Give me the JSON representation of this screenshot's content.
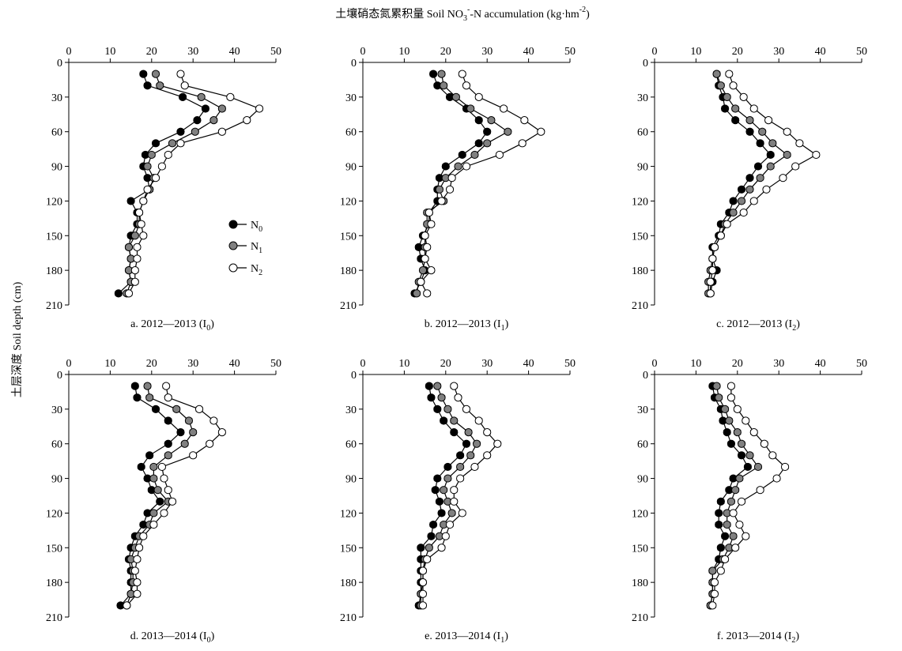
{
  "figure": {
    "top_title": "土壤硝态氮累积量 Soil NO3--N accumulation (kg·hm-2)",
    "top_title_parts": {
      "prefix": "土壤硝态氮累积量 Soil NO",
      "sub": "3",
      "sup": "-",
      "mid": "-N accumulation (kg·hm",
      "sup2": "-2",
      "suffix": ")"
    },
    "y_title": "土层深度 Soil depth (cm)"
  },
  "legend": [
    {
      "label": "N0",
      "base": "N",
      "sub": "0",
      "fill": "#000000"
    },
    {
      "label": "N1",
      "base": "N",
      "sub": "1",
      "fill": "#808080"
    },
    {
      "label": "N2",
      "base": "N",
      "sub": "2",
      "fill": "#ffffff"
    }
  ],
  "chart_data": [
    {
      "type": "line",
      "caption": "a. 2012—2013 (I0)",
      "caption_base": "a. 2012—2013 (I",
      "caption_sub": "0",
      "caption_end": ")",
      "xlim": [
        0,
        50
      ],
      "xticks": [
        0,
        10,
        20,
        30,
        40,
        50
      ],
      "ylim": [
        0,
        210
      ],
      "yticks": [
        0,
        30,
        60,
        90,
        120,
        150,
        180,
        210
      ],
      "y_inverted": true,
      "depth": [
        10,
        20,
        30,
        40,
        50,
        60,
        70,
        80,
        90,
        100,
        110,
        120,
        130,
        140,
        150,
        160,
        170,
        180,
        190,
        200
      ],
      "series": [
        {
          "name": "N0",
          "values": [
            18,
            19,
            27.5,
            33,
            31,
            27,
            21,
            18.5,
            18,
            19,
            19.5,
            15,
            16.5,
            16.5,
            15,
            14.5,
            15,
            14.5,
            15,
            12
          ]
        },
        {
          "name": "N1",
          "values": [
            21,
            22,
            32,
            37,
            35,
            30.5,
            25,
            20,
            19,
            20.5,
            19.5,
            18,
            17,
            17,
            16,
            14.5,
            15,
            14.5,
            15,
            14
          ]
        },
        {
          "name": "N2",
          "values": [
            27,
            28,
            39,
            46,
            43,
            37,
            27,
            24,
            22.5,
            21,
            19,
            18,
            17,
            17.5,
            18,
            16.5,
            16.5,
            16,
            16,
            14.5
          ]
        }
      ]
    },
    {
      "type": "line",
      "caption": "b. 2012—2013 (I1)",
      "caption_base": "b. 2012—2013 (I",
      "caption_sub": "1",
      "caption_end": ")",
      "xlim": [
        0,
        50
      ],
      "xticks": [
        0,
        10,
        20,
        30,
        40,
        50
      ],
      "ylim": [
        0,
        210
      ],
      "yticks": [
        0,
        30,
        60,
        90,
        120,
        150,
        180,
        210
      ],
      "y_inverted": true,
      "depth": [
        10,
        20,
        30,
        40,
        50,
        60,
        70,
        80,
        90,
        100,
        110,
        120,
        130,
        140,
        150,
        160,
        170,
        180,
        190,
        200
      ],
      "series": [
        {
          "name": "N0",
          "values": [
            17,
            18,
            21,
            25,
            28,
            30,
            28,
            24,
            20,
            18.5,
            18,
            18,
            16,
            16,
            14.5,
            13.5,
            14,
            15,
            14,
            12.5
          ]
        },
        {
          "name": "N1",
          "values": [
            19,
            19.5,
            22.5,
            26,
            31,
            35,
            30,
            27,
            23,
            20,
            18.5,
            19.5,
            15.5,
            15.5,
            15,
            15,
            15,
            14.5,
            13.5,
            13
          ]
        },
        {
          "name": "N2",
          "values": [
            24,
            25,
            28,
            34,
            39,
            43,
            38.5,
            33,
            25,
            21.5,
            21,
            19,
            16,
            16.5,
            15,
            15.5,
            15,
            16.5,
            14,
            15.5
          ]
        }
      ]
    },
    {
      "type": "line",
      "caption": "c. 2012—2013 (I2)",
      "caption_base": "c. 2012—2013 (I",
      "caption_sub": "2",
      "caption_end": ")",
      "xlim": [
        0,
        50
      ],
      "xticks": [
        0,
        10,
        20,
        30,
        40,
        50
      ],
      "ylim": [
        0,
        210
      ],
      "yticks": [
        0,
        30,
        60,
        90,
        120,
        150,
        180,
        210
      ],
      "y_inverted": true,
      "depth": [
        10,
        20,
        30,
        40,
        50,
        60,
        70,
        80,
        90,
        100,
        110,
        120,
        130,
        140,
        150,
        160,
        170,
        180,
        190,
        200
      ],
      "series": [
        {
          "name": "N0",
          "values": [
            15,
            15.5,
            16.5,
            17,
            19.5,
            23,
            25.5,
            28,
            25,
            23,
            21,
            19,
            18,
            16,
            15.5,
            14,
            14,
            15,
            14,
            13.5
          ]
        },
        {
          "name": "N1",
          "values": [
            15,
            16,
            17.5,
            19.5,
            23,
            26,
            28.5,
            32,
            28,
            25.5,
            23,
            21,
            19,
            17,
            16,
            14.5,
            14,
            13.5,
            13,
            13
          ]
        },
        {
          "name": "N2",
          "values": [
            18,
            19,
            21.5,
            24,
            27.5,
            32,
            35,
            39,
            34,
            31,
            27,
            24,
            21.5,
            17.5,
            16,
            14.5,
            14,
            14,
            13.5,
            13.5
          ]
        }
      ]
    },
    {
      "type": "line",
      "caption": "d. 2013—2014 (I0)",
      "caption_base": "d. 2013—2014 (I",
      "caption_sub": "0",
      "caption_end": ")",
      "xlim": [
        0,
        50
      ],
      "xticks": [
        0,
        10,
        20,
        30,
        40,
        50
      ],
      "ylim": [
        0,
        210
      ],
      "yticks": [
        0,
        30,
        60,
        90,
        120,
        150,
        180,
        210
      ],
      "y_inverted": true,
      "depth": [
        10,
        20,
        30,
        40,
        50,
        60,
        70,
        80,
        90,
        100,
        110,
        120,
        130,
        140,
        150,
        160,
        170,
        180,
        190,
        200
      ],
      "series": [
        {
          "name": "N0",
          "values": [
            16,
            16.5,
            21,
            24,
            27,
            24,
            19.5,
            17.5,
            19,
            20,
            22,
            19,
            18,
            16,
            15,
            14.5,
            15,
            15,
            15,
            12.5
          ]
        },
        {
          "name": "N1",
          "values": [
            19,
            19.5,
            26,
            29,
            30,
            28,
            24,
            20.5,
            20.5,
            21.5,
            24,
            20.5,
            19.5,
            17,
            16,
            15,
            15.5,
            15.5,
            15,
            14
          ]
        },
        {
          "name": "N2",
          "values": [
            23.5,
            24,
            31.5,
            35,
            37,
            34,
            30,
            22.5,
            23,
            24,
            25,
            23,
            20.5,
            18,
            17,
            16.5,
            16,
            16.5,
            16.5,
            14
          ]
        }
      ]
    },
    {
      "type": "line",
      "caption": "e. 2013—2014 (I1)",
      "caption_base": "e. 2013—2014 (I",
      "caption_sub": "1",
      "caption_end": ")",
      "xlim": [
        0,
        50
      ],
      "xticks": [
        0,
        10,
        20,
        30,
        40,
        50
      ],
      "ylim": [
        0,
        210
      ],
      "yticks": [
        0,
        30,
        60,
        90,
        120,
        150,
        180,
        210
      ],
      "y_inverted": true,
      "depth": [
        10,
        20,
        30,
        40,
        50,
        60,
        70,
        80,
        90,
        100,
        110,
        120,
        130,
        140,
        150,
        160,
        170,
        180,
        190,
        200
      ],
      "series": [
        {
          "name": "N0",
          "values": [
            16,
            16.5,
            18,
            19.5,
            22,
            25,
            23.5,
            20.5,
            18,
            17.5,
            18.5,
            19,
            17,
            16.5,
            14,
            14,
            14,
            14,
            14,
            13.5
          ]
        },
        {
          "name": "N1",
          "values": [
            18,
            19,
            20.5,
            22,
            25.5,
            27.5,
            26,
            23.5,
            20.5,
            19.5,
            20.5,
            21.5,
            19.5,
            18.5,
            16,
            15,
            14.5,
            14.5,
            14,
            14
          ]
        },
        {
          "name": "N2",
          "values": [
            22,
            23,
            25,
            28,
            30,
            32.5,
            30,
            27,
            23.5,
            22,
            22,
            24,
            21,
            20,
            19,
            15.5,
            14.5,
            14.5,
            14.5,
            14.5
          ]
        }
      ]
    },
    {
      "type": "line",
      "caption": "f. 2013—2014 (I2)",
      "caption_base": "f. 2013—2014 (I",
      "caption_sub": "2",
      "caption_end": ")",
      "xlim": [
        0,
        50
      ],
      "xticks": [
        0,
        10,
        20,
        30,
        40,
        50
      ],
      "ylim": [
        0,
        210
      ],
      "yticks": [
        0,
        30,
        60,
        90,
        120,
        150,
        180,
        210
      ],
      "y_inverted": true,
      "depth": [
        10,
        20,
        30,
        40,
        50,
        60,
        70,
        80,
        90,
        100,
        110,
        120,
        130,
        140,
        150,
        160,
        170,
        180,
        190,
        200
      ],
      "series": [
        {
          "name": "N0",
          "values": [
            14,
            14.5,
            16,
            16.5,
            17.5,
            18.5,
            21,
            22.5,
            19,
            18,
            16,
            15.5,
            15.5,
            17,
            16,
            15.5,
            14,
            14,
            14,
            13.5
          ]
        },
        {
          "name": "N1",
          "values": [
            15,
            15.5,
            17,
            18,
            20,
            21,
            23,
            25,
            20.5,
            19.5,
            18.5,
            17.5,
            17.5,
            19,
            18,
            16.5,
            14,
            14,
            14,
            13.5
          ]
        },
        {
          "name": "N2",
          "values": [
            18.5,
            18.5,
            20,
            22,
            24,
            26.5,
            28.5,
            31.5,
            29.5,
            25.5,
            21,
            19,
            20.5,
            22,
            19.5,
            17,
            16,
            14.5,
            14.5,
            14
          ]
        }
      ]
    }
  ]
}
